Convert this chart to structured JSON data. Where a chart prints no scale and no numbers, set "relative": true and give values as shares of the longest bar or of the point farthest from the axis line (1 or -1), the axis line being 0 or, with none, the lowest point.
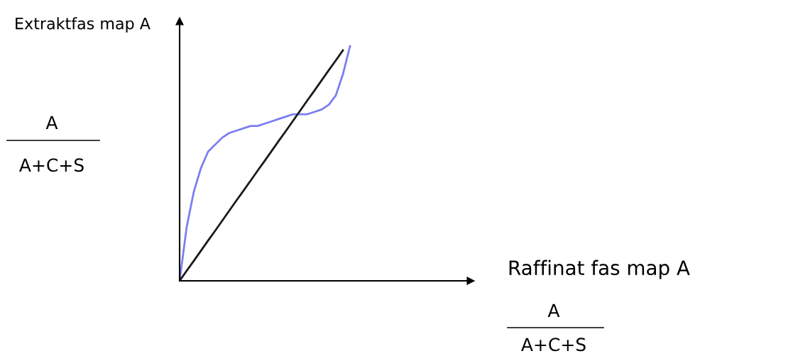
{
  "chart_data": {
    "type": "line",
    "relative": true,
    "grid": false,
    "marker": "none",
    "line_style": "solid",
    "xlabel": "Raffinat fas map A",
    "ylabel": "Extraktfas map A",
    "annotations": [
      "A",
      "A+C+S",
      "A",
      "A+C+S"
    ],
    "categories": [
      null,
      null,
      null,
      null,
      null,
      null,
      null,
      null,
      null,
      null,
      null,
      null,
      null,
      null,
      null,
      null,
      null,
      null,
      null,
      null,
      null,
      null,
      null,
      null,
      null,
      null,
      null,
      null,
      null,
      null,
      null,
      null,
      null,
      null,
      null,
      null,
      null,
      null,
      null,
      null,
      null,
      null
    ],
    "series": [
      {
        "color": "#7b7ef0",
        "values": [
          0,
          0.23,
          0.38,
          0.48,
          0.55,
          0.58,
          0.61,
          0.63,
          0.64,
          0.65,
          0.66,
          0.66,
          0.67,
          0.68,
          0.69,
          0.7,
          0.71,
          0.71,
          0.71,
          0.72,
          0.73,
          0.75,
          0.79,
          0.88,
          1.0,
          null,
          null,
          null,
          null,
          null,
          null,
          null,
          null,
          null,
          null,
          null,
          null,
          null,
          null,
          null,
          null,
          null
        ]
      },
      {
        "color": "#1a1a1a",
        "values": [
          0,
          0.043,
          0.085,
          0.128,
          0.171,
          0.213,
          0.256,
          0.299,
          0.342,
          0.384,
          0.427,
          0.47,
          0.512,
          0.555,
          0.598,
          0.64,
          0.683,
          0.726,
          0.769,
          0.811,
          0.854,
          0.897,
          0.939,
          0.982,
          null,
          null,
          null,
          null,
          null,
          null,
          null,
          null,
          null,
          null,
          null,
          null,
          null,
          null,
          null,
          null,
          null,
          null
        ]
      }
    ]
  }
}
